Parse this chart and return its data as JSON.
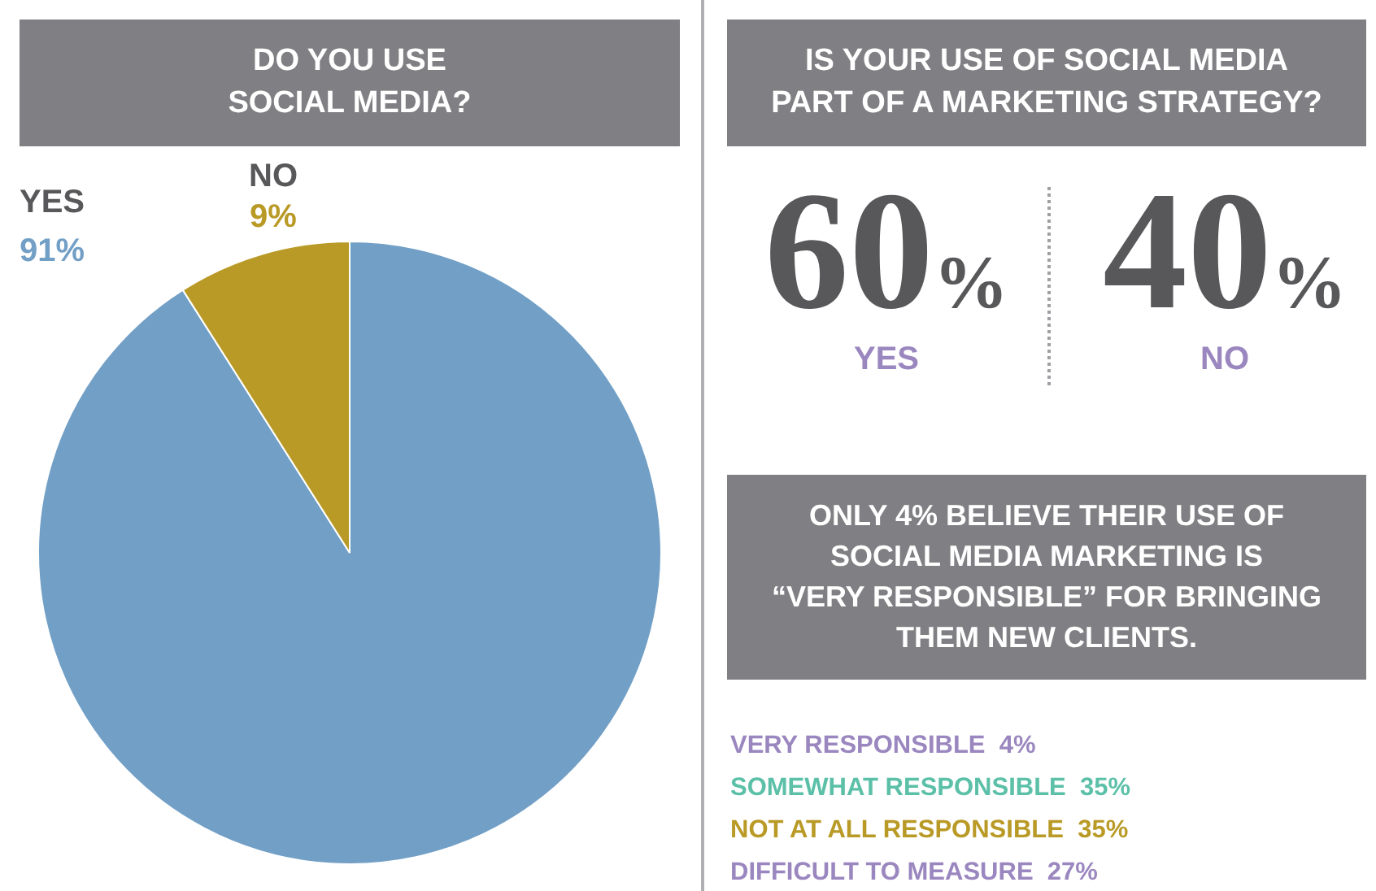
{
  "chart_data": [
    {
      "type": "pie",
      "title": "DO YOU USE\nSOCIAL MEDIA?",
      "categories": [
        "YES",
        "NO"
      ],
      "values": [
        91,
        9
      ],
      "value_labels": [
        "91%",
        "9%"
      ],
      "colors": [
        "#729fc6",
        "#b99a26"
      ]
    },
    {
      "type": "other",
      "title": "IS YOUR USE OF SOCIAL MEDIA\nPART OF A MARKETING STRATEGY?",
      "categories": [
        "YES",
        "NO"
      ],
      "values": [
        60,
        40
      ],
      "value_labels": [
        "60%",
        "40%"
      ],
      "colors": [
        "#9b87bf",
        "#9b87bf"
      ]
    },
    {
      "type": "other",
      "title": "ONLY 4% BELIEVE THEIR USE OF\nSOCIAL MEDIA MARKETING IS\n“VERY RESPONSIBLE” FOR BRINGING\nTHEM NEW CLIENTS.",
      "categories": [
        "VERY RESPONSIBLE",
        "SOMEWHAT RESPONSIBLE",
        "NOT AT ALL RESPONSIBLE",
        "DIFFICULT TO MEASURE"
      ],
      "values": [
        4,
        35,
        35,
        27
      ],
      "value_labels": [
        "4%",
        "35%",
        "35%",
        "27%"
      ],
      "colors": [
        "#9b87bf",
        "#5cc0a8",
        "#b99a26",
        "#9b87bf"
      ]
    }
  ]
}
